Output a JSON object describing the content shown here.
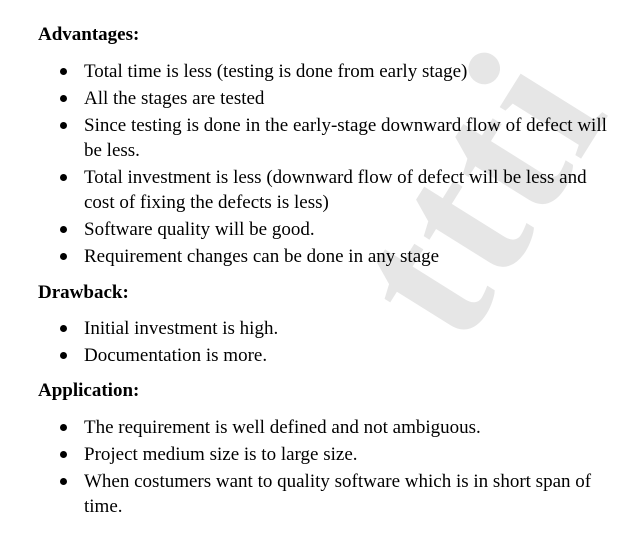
{
  "watermark": "ttti",
  "sections": {
    "advantages": {
      "heading": "Advantages:",
      "items": [
        "Total time is less (testing is done from early stage)",
        "All the stages are tested",
        "Since testing is done in the early-stage downward flow of defect will be less.",
        "Total investment is less (downward flow of defect will be less and cost of fixing the defects is less)",
        "Software quality will be good.",
        "Requirement changes can be done in any stage"
      ]
    },
    "drawback": {
      "heading": "Drawback:",
      "items": [
        "Initial investment is high.",
        "Documentation is more."
      ]
    },
    "application": {
      "heading": "Application:",
      "items": [
        "The requirement is well defined and not ambiguous.",
        "Project medium size is to large size.",
        "When costumers want to quality software which is in short span of time."
      ]
    }
  }
}
